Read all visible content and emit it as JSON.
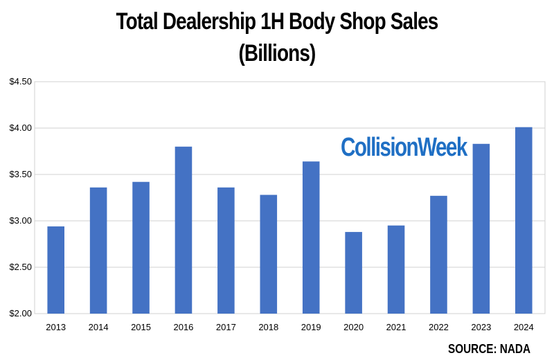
{
  "chart_data": {
    "type": "bar",
    "title": "Total Dealership 1H Body Shop Sales",
    "subtitle": "(Billions)",
    "categories": [
      "2013",
      "2014",
      "2015",
      "2016",
      "2017",
      "2018",
      "2019",
      "2020",
      "2021",
      "2022",
      "2023",
      "2024"
    ],
    "values": [
      2.94,
      3.36,
      3.42,
      3.8,
      3.36,
      3.28,
      3.64,
      2.88,
      2.95,
      3.27,
      3.83,
      4.01
    ],
    "ylim": [
      2.0,
      4.5
    ],
    "yticks": [
      2.0,
      2.5,
      3.0,
      3.5,
      4.0,
      4.5
    ],
    "ytick_labels": [
      "$2.00",
      "$2.50",
      "$3.00",
      "$3.50",
      "$4.00",
      "$4.50"
    ],
    "xlabel": "",
    "ylabel": "",
    "grid": true,
    "bar_color": "#4472c4"
  },
  "source_label": "SOURCE: NADA",
  "watermark": "CollisionWeek"
}
